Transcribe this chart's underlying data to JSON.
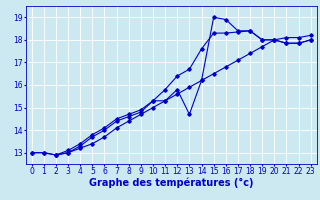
{
  "bg_color": "#cce8f0",
  "grid_color": "#ffffff",
  "line_color": "#0000cc",
  "xlabel": "Graphe des températures (°c)",
  "xlabel_fontsize": 7,
  "tick_fontsize": 5.5,
  "xlim": [
    -0.5,
    23.5
  ],
  "ylim": [
    12.5,
    19.5
  ],
  "yticks": [
    13,
    14,
    15,
    16,
    17,
    18,
    19
  ],
  "xticks": [
    0,
    1,
    2,
    3,
    4,
    5,
    6,
    7,
    8,
    9,
    10,
    11,
    12,
    13,
    14,
    15,
    16,
    17,
    18,
    19,
    20,
    21,
    22,
    23
  ],
  "line1_x": [
    0,
    1,
    2,
    3,
    4,
    5,
    6,
    7,
    8,
    9,
    10,
    11,
    12,
    13,
    14,
    15,
    16,
    17,
    18,
    19,
    20,
    21,
    22,
    23
  ],
  "line1_y": [
    13.0,
    13.0,
    12.9,
    13.0,
    13.2,
    13.4,
    13.7,
    14.1,
    14.4,
    14.7,
    15.0,
    15.3,
    15.6,
    15.9,
    16.2,
    16.5,
    16.8,
    17.1,
    17.4,
    17.7,
    18.0,
    18.1,
    18.1,
    18.2
  ],
  "line2_x": [
    0,
    1,
    2,
    3,
    4,
    5,
    6,
    7,
    8,
    9,
    10,
    11,
    12,
    13,
    14,
    15,
    16,
    17,
    18,
    19,
    20,
    21,
    22,
    23
  ],
  "line2_y": [
    13.0,
    13.0,
    12.9,
    13.1,
    13.4,
    13.8,
    14.1,
    14.5,
    14.7,
    14.9,
    15.3,
    15.8,
    16.4,
    16.7,
    17.6,
    18.3,
    18.3,
    18.35,
    18.4,
    18.0,
    18.0,
    17.85,
    17.85,
    18.0
  ],
  "line3_x": [
    2,
    3,
    4,
    5,
    6,
    7,
    8,
    9,
    10,
    11,
    12,
    13,
    14,
    15,
    16,
    17,
    18,
    19,
    20,
    21,
    22,
    23
  ],
  "line3_y": [
    12.9,
    13.0,
    13.3,
    13.7,
    14.0,
    14.4,
    14.6,
    14.8,
    15.3,
    15.3,
    15.8,
    14.7,
    16.2,
    19.0,
    18.9,
    18.4,
    18.4,
    18.0,
    18.0,
    17.85,
    17.85,
    18.0
  ]
}
